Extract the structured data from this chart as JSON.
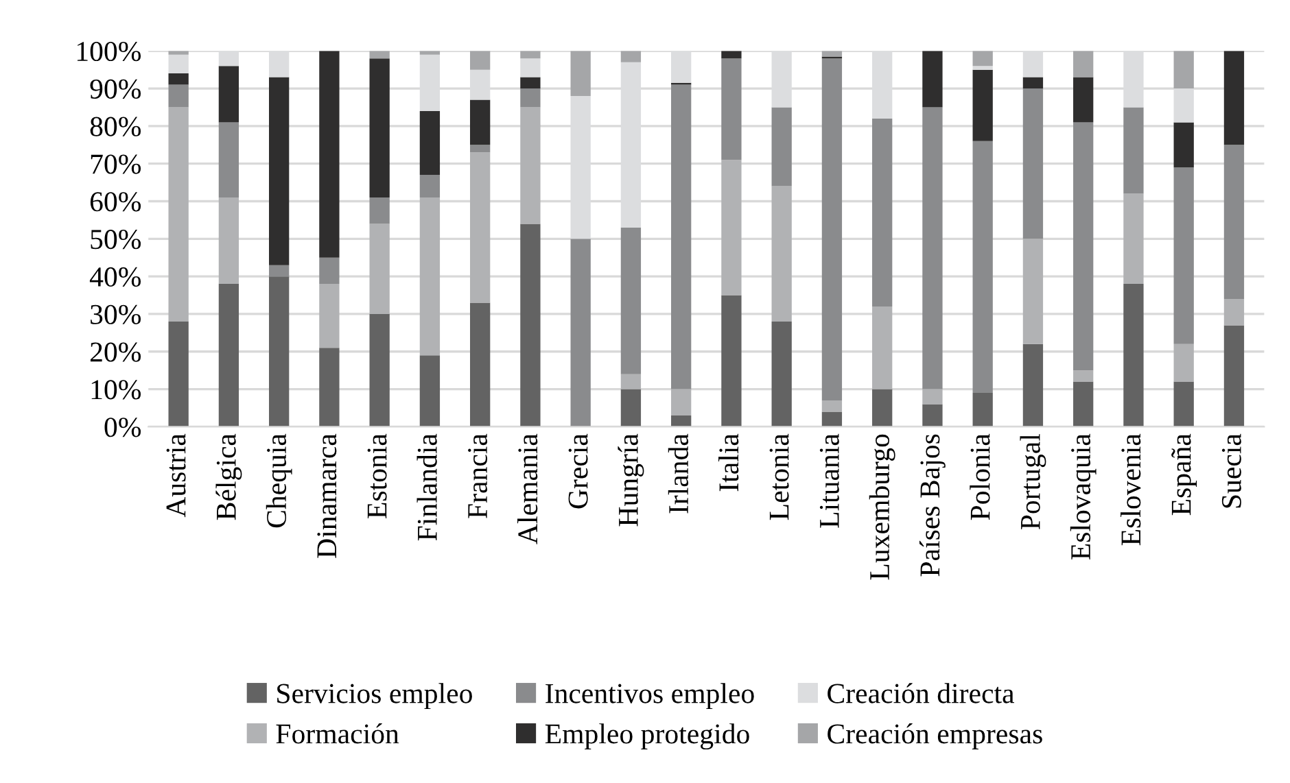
{
  "chart_data": {
    "type": "bar",
    "stacked": true,
    "categories": [
      "Austria",
      "Bélgica",
      "Chequia",
      "Dinamarca",
      "Estonia",
      "Finlandia",
      "Francia",
      "Alemania",
      "Grecia",
      "Hungría",
      "Irlanda",
      "Italia",
      "Letonia",
      "Lituania",
      "Luxemburgo",
      "Países Bajos",
      "Polonia",
      "Portugal",
      "Eslovaquia",
      "Eslovenia",
      "España",
      "Suecia"
    ],
    "series": [
      {
        "name": "Servicios empleo",
        "color": "#636363",
        "values": [
          28,
          38,
          40,
          21,
          30,
          19,
          33,
          54,
          0,
          10,
          3,
          35,
          28,
          4,
          10,
          6,
          9,
          22,
          12,
          38,
          12,
          27
        ]
      },
      {
        "name": "Formación",
        "color": "#b1b2b4",
        "values": [
          57,
          23,
          0,
          17,
          24,
          42,
          40,
          31,
          0,
          4,
          7,
          36,
          36,
          3,
          22,
          4,
          0,
          28,
          3,
          24,
          10,
          7
        ]
      },
      {
        "name": "Incentivos empleo",
        "color": "#8a8b8d",
        "values": [
          6,
          20,
          3,
          7,
          7,
          6,
          2,
          5,
          50,
          39,
          81,
          27,
          21,
          91,
          50,
          75,
          67,
          40,
          66,
          23,
          47,
          41
        ]
      },
      {
        "name": "Empleo protegido",
        "color": "#2f2e2e",
        "values": [
          3,
          15,
          50,
          55,
          37,
          17,
          12,
          3,
          0,
          0,
          0.5,
          2,
          0,
          0.5,
          0,
          15,
          19,
          3,
          12,
          0,
          12,
          25
        ]
      },
      {
        "name": "Creación directa",
        "color": "#dcdddf",
        "values": [
          5,
          4,
          7,
          0,
          0,
          15,
          8,
          5,
          38,
          44,
          8.5,
          0,
          15,
          0,
          18,
          0,
          1,
          7,
          0,
          15,
          9,
          0
        ]
      },
      {
        "name": "Creación empresas",
        "color": "#a5a6a8",
        "values": [
          1,
          0,
          0,
          0,
          2,
          1,
          5,
          2,
          12,
          3,
          0,
          0,
          0,
          1.5,
          0,
          0,
          4,
          0,
          7,
          0,
          10,
          0
        ]
      }
    ],
    "ylim": [
      0,
      100
    ],
    "yticks": [
      {
        "value": 0,
        "label": "0%"
      },
      {
        "value": 10,
        "label": "10%"
      },
      {
        "value": 20,
        "label": "20%"
      },
      {
        "value": 30,
        "label": "30%"
      },
      {
        "value": 40,
        "label": "40%"
      },
      {
        "value": 50,
        "label": "50%"
      },
      {
        "value": 60,
        "label": "60%"
      },
      {
        "value": 70,
        "label": "70%"
      },
      {
        "value": 80,
        "label": "80%"
      },
      {
        "value": 90,
        "label": "90%"
      },
      {
        "value": 100,
        "label": "100%"
      }
    ],
    "grid": "y",
    "legend": "bottom"
  }
}
